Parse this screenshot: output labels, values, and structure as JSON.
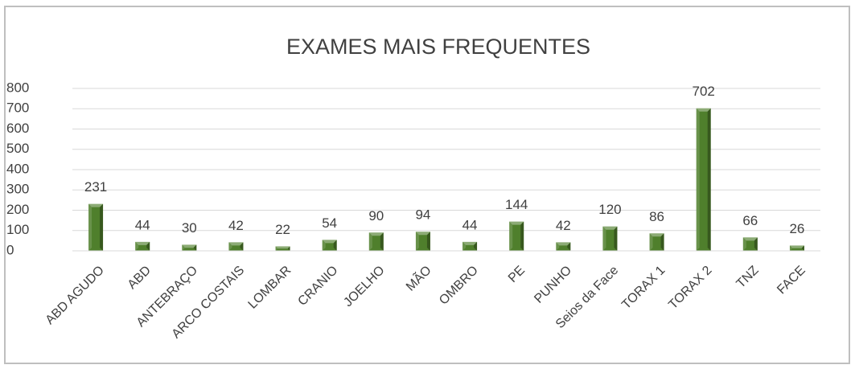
{
  "chart_data": {
    "type": "bar",
    "title": "EXAMES MAIS FREQUENTES",
    "categories": [
      "ABD AGUDO",
      "ABD",
      "ANTEBRAÇO",
      "ARCO COSTAIS",
      "LOMBAR",
      "CRANIO",
      "JOELHO",
      "MÃO",
      "OMBRO",
      "PE",
      "PUNHO",
      "Seios da Face",
      "TORAX 1",
      "TORAX 2",
      "TNZ",
      "FACE"
    ],
    "values": [
      231,
      44,
      30,
      42,
      22,
      54,
      90,
      94,
      44,
      144,
      42,
      120,
      86,
      702,
      66,
      26
    ],
    "color": "#4f7f2c",
    "ylim": [
      0,
      800
    ],
    "yticks": [
      0,
      100,
      200,
      300,
      400,
      500,
      600,
      700,
      800
    ],
    "grid": true
  }
}
